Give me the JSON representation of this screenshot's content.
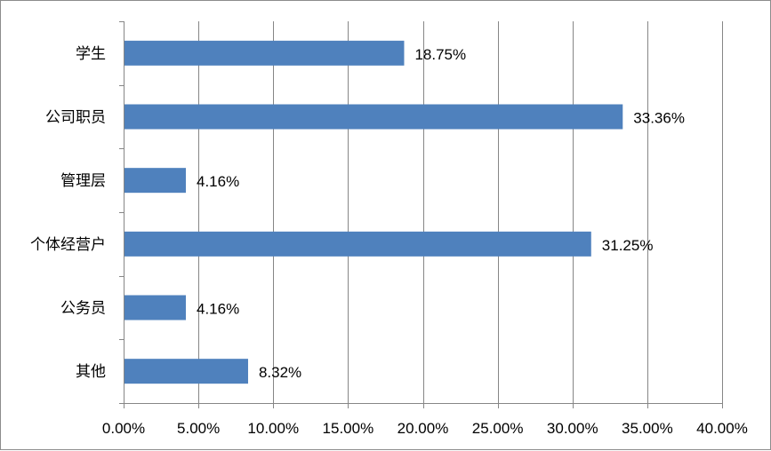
{
  "chart_data": {
    "type": "bar",
    "orientation": "horizontal",
    "categories": [
      "学生",
      "公司职员",
      "管理层",
      "个体经营户",
      "公务员",
      "其他"
    ],
    "values": [
      18.75,
      33.36,
      4.16,
      31.25,
      4.16,
      8.32
    ],
    "data_labels": [
      "18.75%",
      "33.36%",
      "4.16%",
      "31.25%",
      "4.16%",
      "8.32%"
    ],
    "xlim": [
      0,
      40
    ],
    "x_ticks": [
      0,
      5,
      10,
      15,
      20,
      25,
      30,
      35,
      40
    ],
    "x_tick_labels": [
      "0.00%",
      "5.00%",
      "10.00%",
      "15.00%",
      "20.00%",
      "25.00%",
      "30.00%",
      "35.00%",
      "40.00%"
    ],
    "grid": "vertical",
    "legend": "none",
    "bar_color": "#4f81bd"
  }
}
